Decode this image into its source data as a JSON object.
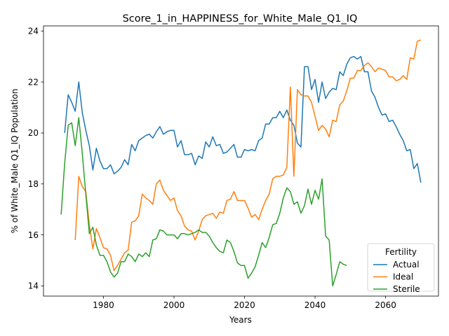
{
  "chart_data": {
    "type": "line",
    "title": "Score_1_in_HAPPINESS_for_White_Male_Q1_IQ",
    "xlabel": "Years",
    "ylabel": "% of White_Male Q1_IQ Population",
    "xlim": [
      1963,
      2075
    ],
    "ylim": [
      13.6,
      24.2
    ],
    "xticks": [
      1980,
      2000,
      2020,
      2040,
      2060
    ],
    "yticks": [
      14,
      16,
      18,
      20,
      22,
      24
    ],
    "grid": false,
    "legend": {
      "title": "Fertility",
      "position": "lower-right"
    },
    "series": [
      {
        "name": "Actual",
        "color": "#1f77b4",
        "x": [
          1969,
          1970,
          1971,
          1972,
          1973,
          1974,
          1975,
          1976,
          1977,
          1978,
          1979,
          1980,
          1981,
          1982,
          1983,
          1984,
          1985,
          1986,
          1987,
          1988,
          1989,
          1990,
          1991,
          1992,
          1993,
          1994,
          1995,
          1996,
          1997,
          1998,
          1999,
          2000,
          2001,
          2002,
          2003,
          2004,
          2005,
          2006,
          2007,
          2008,
          2009,
          2010,
          2011,
          2012,
          2013,
          2014,
          2015,
          2016,
          2017,
          2018,
          2019,
          2020,
          2021,
          2022,
          2023,
          2024,
          2025,
          2026,
          2027,
          2028,
          2029,
          2030,
          2031,
          2032,
          2033,
          2034,
          2035,
          2036,
          2037,
          2038,
          2039,
          2040,
          2041,
          2042,
          2043,
          2044,
          2045,
          2046,
          2047,
          2048,
          2049,
          2050,
          2051,
          2052,
          2053,
          2054,
          2055,
          2056,
          2057,
          2058,
          2059,
          2060,
          2061,
          2062,
          2063,
          2064,
          2065,
          2066,
          2067,
          2068,
          2069,
          2070
        ],
        "values": [
          20.0,
          21.5,
          21.2,
          20.85,
          22.0,
          20.8,
          20.1,
          19.5,
          18.55,
          19.4,
          18.9,
          18.6,
          18.6,
          18.75,
          18.4,
          18.5,
          18.65,
          18.95,
          18.75,
          19.55,
          19.3,
          19.7,
          19.8,
          19.9,
          19.95,
          19.8,
          20.05,
          20.25,
          19.95,
          20.05,
          20.1,
          20.1,
          19.45,
          19.7,
          19.15,
          19.15,
          19.2,
          18.75,
          19.1,
          19.0,
          19.65,
          19.45,
          19.85,
          19.5,
          19.55,
          19.2,
          19.25,
          19.4,
          19.55,
          19.05,
          19.05,
          19.35,
          19.3,
          19.35,
          19.3,
          19.7,
          19.8,
          20.35,
          20.35,
          20.6,
          20.6,
          20.85,
          20.6,
          20.9,
          20.5,
          20.3,
          19.6,
          19.45,
          22.6,
          22.6,
          21.7,
          22.1,
          21.2,
          22.0,
          21.35,
          21.6,
          21.75,
          21.7,
          22.4,
          22.25,
          22.7,
          22.95,
          23.0,
          22.9,
          23.0,
          22.4,
          22.4,
          21.65,
          21.4,
          21.0,
          20.7,
          20.75,
          20.45,
          20.5,
          20.25,
          19.95,
          19.7,
          19.3,
          19.35,
          18.6,
          18.8,
          18.05
        ]
      },
      {
        "name": "Ideal",
        "color": "#ff7f0e",
        "x": [
          1972,
          1973,
          1974,
          1975,
          1976,
          1977,
          1978,
          1979,
          1980,
          1981,
          1982,
          1983,
          1984,
          1985,
          1986,
          1987,
          1988,
          1989,
          1990,
          1991,
          1992,
          1993,
          1994,
          1995,
          1996,
          1997,
          1998,
          1999,
          2000,
          2001,
          2002,
          2003,
          2004,
          2005,
          2006,
          2007,
          2008,
          2009,
          2010,
          2011,
          2012,
          2013,
          2014,
          2015,
          2016,
          2017,
          2018,
          2019,
          2020,
          2021,
          2022,
          2023,
          2024,
          2025,
          2026,
          2027,
          2028,
          2029,
          2030,
          2031,
          2032,
          2033,
          2034,
          2035,
          2036,
          2037,
          2038,
          2039,
          2040,
          2041,
          2042,
          2043,
          2044,
          2045,
          2046,
          2047,
          2048,
          2049,
          2050,
          2051,
          2052,
          2053,
          2054,
          2055,
          2056,
          2057,
          2058,
          2059,
          2060,
          2061,
          2062,
          2063,
          2064,
          2065,
          2066,
          2067,
          2068,
          2069,
          2070
        ],
        "values": [
          15.8,
          18.3,
          17.9,
          17.7,
          16.4,
          15.45,
          16.25,
          15.9,
          15.5,
          15.45,
          15.2,
          14.6,
          14.8,
          15.05,
          15.3,
          15.4,
          16.5,
          16.55,
          16.75,
          17.6,
          17.45,
          17.35,
          17.2,
          18.0,
          18.15,
          17.75,
          17.55,
          17.35,
          17.45,
          16.95,
          16.75,
          16.35,
          16.2,
          16.15,
          15.8,
          16.15,
          16.6,
          16.75,
          16.8,
          16.85,
          16.65,
          16.9,
          16.85,
          17.35,
          17.4,
          17.7,
          17.35,
          17.35,
          17.35,
          17.05,
          16.7,
          16.8,
          16.6,
          17.0,
          17.35,
          17.6,
          18.2,
          18.3,
          18.3,
          18.35,
          18.65,
          21.8,
          18.3,
          21.7,
          21.5,
          21.45,
          21.45,
          21.2,
          20.65,
          20.1,
          20.3,
          20.15,
          19.85,
          20.5,
          20.45,
          21.1,
          21.25,
          21.65,
          22.15,
          22.15,
          22.45,
          22.45,
          22.65,
          22.75,
          22.6,
          22.4,
          22.55,
          22.5,
          22.45,
          22.2,
          22.2,
          22.05,
          22.1,
          22.25,
          22.1,
          22.95,
          22.9,
          23.6,
          23.65
        ]
      },
      {
        "name": "Sterile",
        "color": "#2ca02c",
        "x": [
          1968,
          1969,
          1970,
          1971,
          1972,
          1973,
          1974,
          1975,
          1976,
          1977,
          1978,
          1979,
          1980,
          1981,
          1982,
          1983,
          1984,
          1985,
          1986,
          1987,
          1988,
          1989,
          1990,
          1991,
          1992,
          1993,
          1994,
          1995,
          1996,
          1997,
          1998,
          1999,
          2000,
          2001,
          2002,
          2003,
          2004,
          2005,
          2006,
          2007,
          2008,
          2009,
          2010,
          2011,
          2012,
          2013,
          2014,
          2015,
          2016,
          2017,
          2018,
          2019,
          2020,
          2021,
          2022,
          2023,
          2024,
          2025,
          2026,
          2027,
          2028,
          2029,
          2030,
          2031,
          2032,
          2033,
          2034,
          2035,
          2036,
          2037,
          2038,
          2039,
          2040,
          2041,
          2042,
          2043,
          2044,
          2045,
          2046,
          2047,
          2048,
          2049
        ],
        "values": [
          16.8,
          18.8,
          20.3,
          20.4,
          19.5,
          20.6,
          19.2,
          17.6,
          16.05,
          16.3,
          15.6,
          15.2,
          15.2,
          14.95,
          14.55,
          14.35,
          14.5,
          14.95,
          14.95,
          15.25,
          15.15,
          14.95,
          15.25,
          15.15,
          15.3,
          15.15,
          15.8,
          15.85,
          16.2,
          16.15,
          16.0,
          16.0,
          16.0,
          15.85,
          16.05,
          16.05,
          16.0,
          16.05,
          16.1,
          16.2,
          16.1,
          16.1,
          15.95,
          15.7,
          15.5,
          15.35,
          15.3,
          15.8,
          15.7,
          15.35,
          14.9,
          14.8,
          14.8,
          14.3,
          14.5,
          14.75,
          15.2,
          15.7,
          15.5,
          15.9,
          16.4,
          16.45,
          16.85,
          17.45,
          17.85,
          17.7,
          17.2,
          17.3,
          16.85,
          17.15,
          17.8,
          17.2,
          17.75,
          17.4,
          18.2,
          15.95,
          15.8,
          14.0,
          14.45,
          14.95,
          14.85,
          14.8
        ]
      }
    ]
  }
}
